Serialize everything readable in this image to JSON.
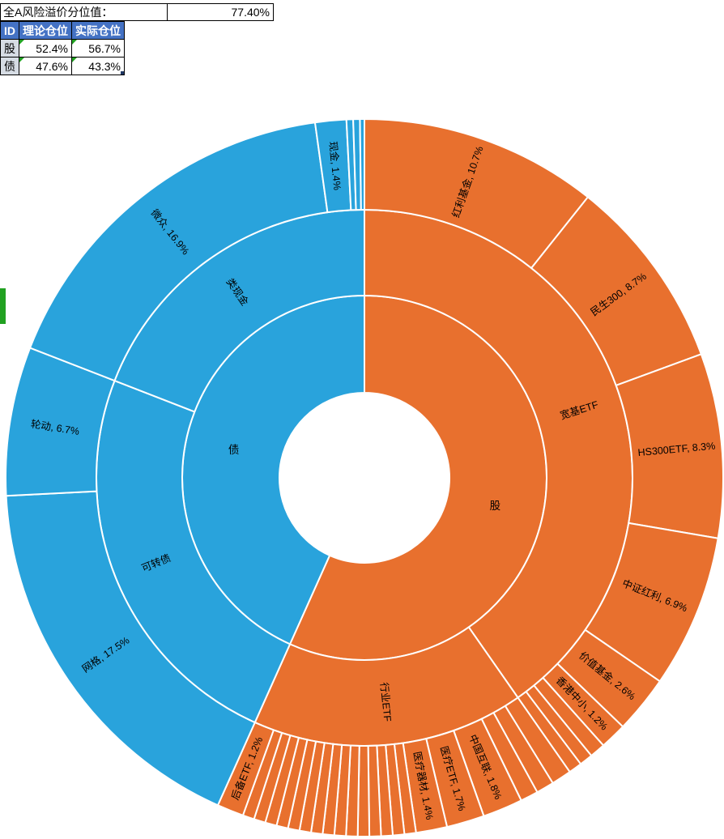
{
  "header": {
    "risk_premium_label": "全A风险溢价分位值：",
    "risk_premium_value": "77.40%"
  },
  "positions_table": {
    "columns": [
      "ID",
      "理论仓位",
      "实际仓位"
    ],
    "rows": [
      {
        "id": "股",
        "theoretical": "52.4%",
        "actual": "56.7%"
      },
      {
        "id": "债",
        "theoretical": "47.6%",
        "actual": "43.3%"
      }
    ]
  },
  "colors": {
    "stock": "#E8702E",
    "bond": "#29A3DC",
    "table_header_bg": "#4472C4",
    "table_header_text": "#FFFFFF",
    "row_label_bg": "#D6DCE4",
    "error_indicator": "#21A121",
    "selection_handle": "#1F3864",
    "green_marker": "#21A121",
    "slice_border": "#FFFFFF",
    "label_text": "#000000"
  },
  "chart_data": {
    "type": "sunburst",
    "units": "percent",
    "direction": "clockwise",
    "start_angle_deg": 0,
    "legend": "none",
    "rings": 3,
    "tree": [
      {
        "name": "股",
        "label": "股",
        "value": 56.7,
        "color": "#E8702E",
        "children": [
          {
            "name": "宽基ETF",
            "label": "宽基ETF",
            "value": 40.3,
            "children": [
              {
                "name": "红利基金",
                "value": 10.7,
                "label": "红利基金, 10.7%"
              },
              {
                "name": "民生300",
                "value": 8.7,
                "label": "民生300, 8.7%"
              },
              {
                "name": "HS300ETF",
                "value": 8.3,
                "label": "HS300ETF, 8.3%"
              },
              {
                "name": "中证红利",
                "value": 6.9,
                "label": "中证红利, 6.9%"
              },
              {
                "name": "价值基金",
                "value": 2.6,
                "label": "价值基金, 2.6%"
              },
              {
                "name": "香港中小",
                "value": 1.2,
                "label": "香港中小, 1.2%"
              },
              {
                "name": "",
                "value": 0.7
              },
              {
                "name": "",
                "value": 0.6
              },
              {
                "name": "",
                "value": 0.6
              }
            ]
          },
          {
            "name": "行业ETF",
            "label": "行业ETF",
            "value": 16.4,
            "children": [
              {
                "name": "",
                "value": 0.9
              },
              {
                "name": "",
                "value": 0.8
              },
              {
                "name": "",
                "value": 0.8
              },
              {
                "name": "中国互联",
                "value": 1.8,
                "label": "中国互联, 1.8%"
              },
              {
                "name": "医疗ETF",
                "value": 1.7,
                "label": "医疗ETF, 1.7%"
              },
              {
                "name": "医疗器材",
                "value": 1.4,
                "label": "医疗器材, 1.4%"
              },
              {
                "name": "",
                "value": 0.52
              },
              {
                "name": "",
                "value": 0.52
              },
              {
                "name": "",
                "value": 0.52
              },
              {
                "name": "",
                "value": 0.52
              },
              {
                "name": "",
                "value": 0.52
              },
              {
                "name": "",
                "value": 0.52
              },
              {
                "name": "",
                "value": 0.52
              },
              {
                "name": "",
                "value": 0.52
              },
              {
                "name": "",
                "value": 0.52
              },
              {
                "name": "",
                "value": 0.52
              },
              {
                "name": "",
                "value": 0.52
              },
              {
                "name": "",
                "value": 0.52
              },
              {
                "name": "",
                "value": 0.52
              },
              {
                "name": "",
                "value": 0.52
              },
              {
                "name": "",
                "value": 0.52
              },
              {
                "name": "后备ETF",
                "value": 1.2,
                "label": "后备ETF, 1.2%"
              }
            ]
          }
        ]
      },
      {
        "name": "债",
        "label": "债",
        "value": 43.3,
        "color": "#29A3DC",
        "children": [
          {
            "name": "可转债",
            "label": "可转债",
            "value": 24.2,
            "children": [
              {
                "name": "网格",
                "value": 17.5,
                "label": "网格, 17.5%"
              },
              {
                "name": "轮动",
                "value": 6.7,
                "label": "轮动, 6.7%"
              }
            ]
          },
          {
            "name": "类现金",
            "label": "类现金",
            "value": 19.1,
            "children": [
              {
                "name": "微众",
                "value": 16.9,
                "label": "微众, 16.9%"
              },
              {
                "name": "现金",
                "value": 1.4,
                "label": "现金, 1.4%"
              },
              {
                "name": "",
                "value": 0.3
              },
              {
                "name": "",
                "value": 0.3
              },
              {
                "name": "",
                "value": 0.2
              }
            ]
          }
        ]
      }
    ]
  }
}
